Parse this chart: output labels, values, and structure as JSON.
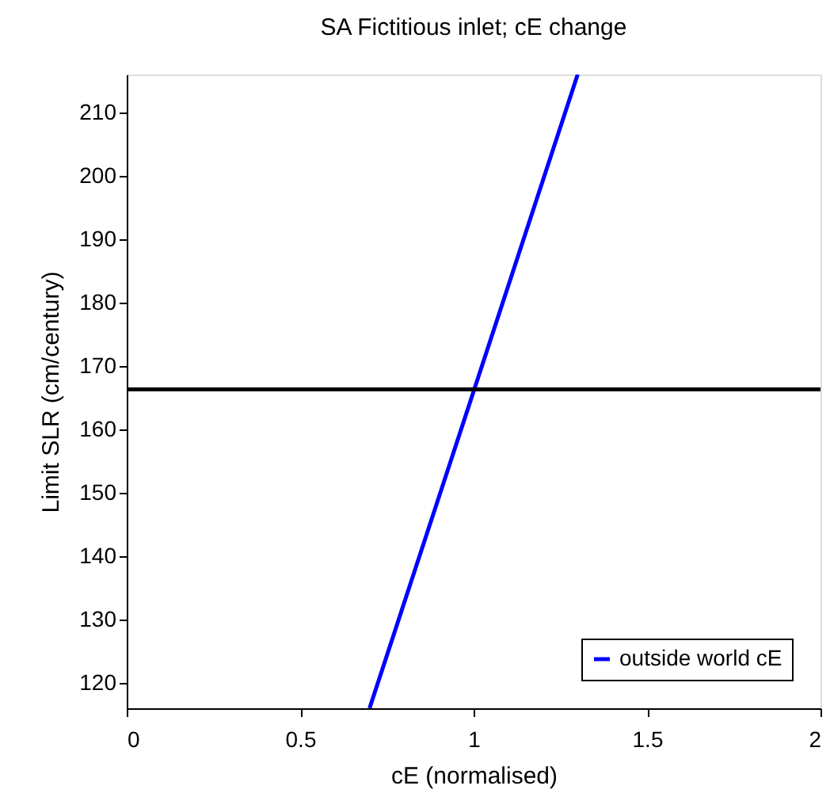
{
  "chart_data": {
    "type": "line",
    "title": "SA Fictitious inlet; cE change",
    "xlabel": "cE (normalised)",
    "ylabel": "Limit SLR (cm/century)",
    "series": [
      {
        "name": "outside world cE",
        "color": "#0000ff",
        "x": [
          0.7,
          1.3
        ],
        "values": [
          116,
          216
        ]
      }
    ],
    "xlim": [
      0,
      2
    ],
    "xticks": [
      0,
      0.5,
      1,
      1.5,
      2
    ],
    "ylim": [
      116,
      216
    ],
    "yticks": [
      120,
      130,
      140,
      150,
      160,
      170,
      180,
      190,
      200,
      210
    ],
    "ref_lines": [
      {
        "axis": "y",
        "value": 166.3,
        "color": "#000000"
      }
    ],
    "grid": false,
    "legend": "bottom right",
    "marker": "none",
    "line_style": "solid"
  }
}
